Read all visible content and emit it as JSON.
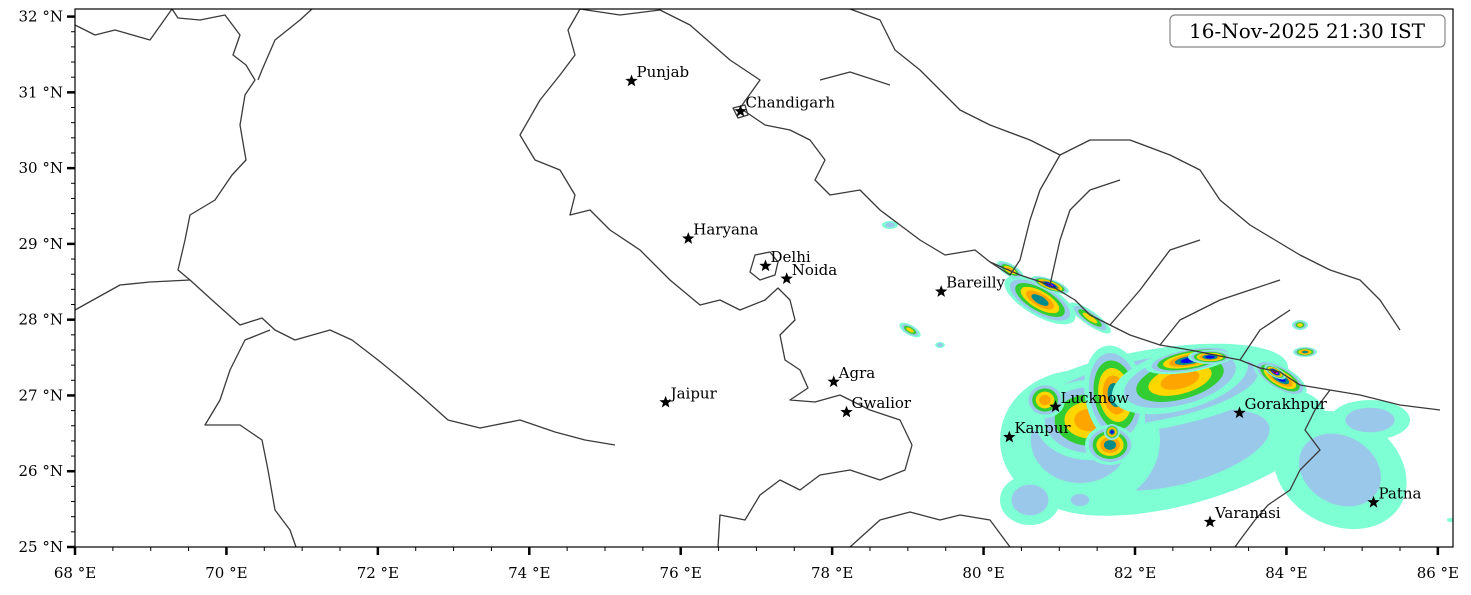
{
  "timestamp_label": "16-Nov-2025 21:30 IST",
  "map": {
    "lon_range": [
      68,
      86.2
    ],
    "lat_range": [
      25,
      32.1
    ],
    "x_ticks": [
      {
        "value": 68,
        "label": "68 °E"
      },
      {
        "value": 70,
        "label": "70 °E"
      },
      {
        "value": 72,
        "label": "72 °E"
      },
      {
        "value": 74,
        "label": "74 °E"
      },
      {
        "value": 76,
        "label": "76 °E"
      },
      {
        "value": 78,
        "label": "78 °E"
      },
      {
        "value": 80,
        "label": "80 °E"
      },
      {
        "value": 82,
        "label": "82 °E"
      },
      {
        "value": 84,
        "label": "84 °E"
      },
      {
        "value": 86,
        "label": "86 °E"
      }
    ],
    "y_ticks": [
      {
        "value": 25,
        "label": "25 °N"
      },
      {
        "value": 26,
        "label": "26 °N"
      },
      {
        "value": 27,
        "label": "27 °N"
      },
      {
        "value": 28,
        "label": "28 °N"
      },
      {
        "value": 29,
        "label": "29 °N"
      },
      {
        "value": 30,
        "label": "30 °N"
      },
      {
        "value": 31,
        "label": "31 °N"
      },
      {
        "value": 32,
        "label": "32 °N"
      }
    ],
    "x_minor_step": 0.5,
    "y_minor_step": 0.2
  },
  "cities": [
    {
      "name": "Punjab",
      "lon": 75.35,
      "lat": 31.15
    },
    {
      "name": "Chandigarh",
      "lon": 76.79,
      "lat": 30.75
    },
    {
      "name": "Haryana",
      "lon": 76.1,
      "lat": 29.07
    },
    {
      "name": "Delhi",
      "lon": 77.12,
      "lat": 28.71
    },
    {
      "name": "Noida",
      "lon": 77.4,
      "lat": 28.54
    },
    {
      "name": "Bareilly",
      "lon": 79.44,
      "lat": 28.37
    },
    {
      "name": "Agra",
      "lon": 78.02,
      "lat": 27.18
    },
    {
      "name": "Jaipur",
      "lon": 75.8,
      "lat": 26.91
    },
    {
      "name": "Gwalior",
      "lon": 78.19,
      "lat": 26.78
    },
    {
      "name": "Lucknow",
      "lon": 80.95,
      "lat": 26.85
    },
    {
      "name": "Kanpur",
      "lon": 80.34,
      "lat": 26.45
    },
    {
      "name": "Gorakhpur",
      "lon": 83.38,
      "lat": 26.77
    },
    {
      "name": "Patna",
      "lon": 85.15,
      "lat": 25.59
    },
    {
      "name": "Varanasi",
      "lon": 82.99,
      "lat": 25.33
    }
  ],
  "rain_colors": [
    "#7fffd4",
    "#9ac8ea",
    "#32cd32",
    "#ffd700",
    "#ffa500",
    "#008b8b",
    "#0000ff",
    "#ff00ff",
    "#800000"
  ]
}
